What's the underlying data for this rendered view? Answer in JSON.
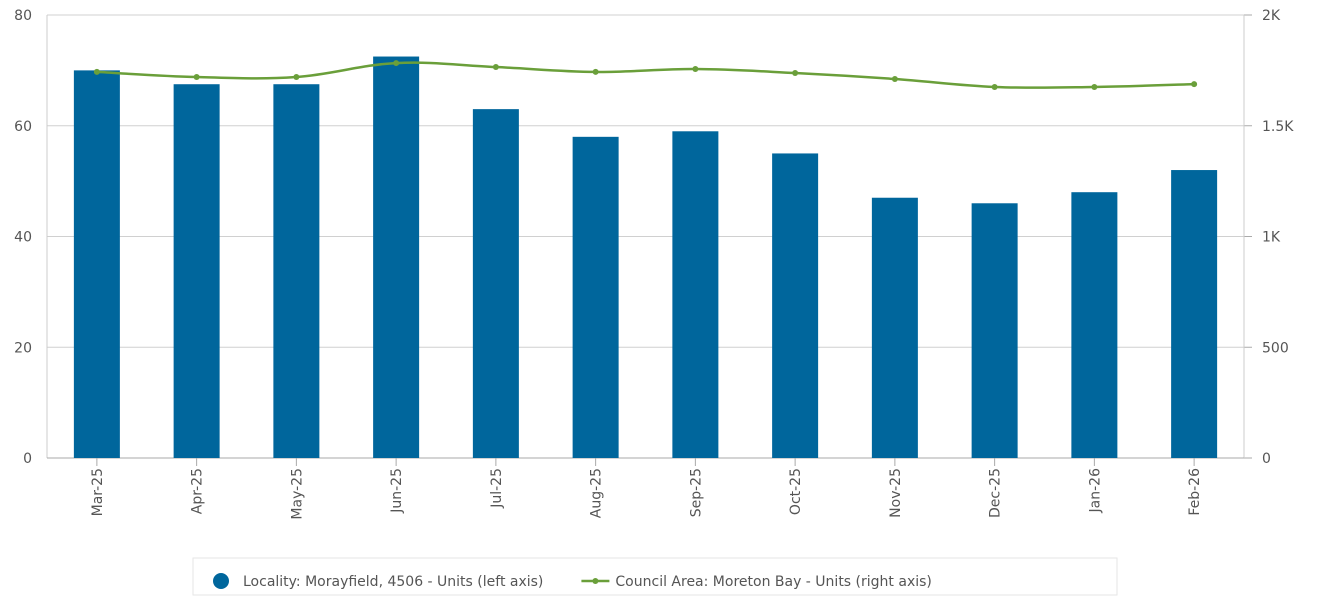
{
  "chart_data": {
    "type": "bar-line",
    "categories": [
      "Mar-25",
      "Apr-25",
      "May-25",
      "Jun-25",
      "Jul-25",
      "Aug-25",
      "Sep-25",
      "Oct-25",
      "Nov-25",
      "Dec-25",
      "Jan-26",
      "Feb-26"
    ],
    "series": [
      {
        "name": "Locality: Morayfield, 4506 - Units (left axis)",
        "color": "#00669c",
        "type": "bar",
        "axis": "y",
        "values": [
          70,
          67.5,
          67.5,
          72.5,
          63,
          58,
          59,
          55,
          47,
          46,
          48,
          52
        ]
      },
      {
        "name": "Council Area: Moreton Bay - Units (right axis)",
        "color": "#6a9f3a",
        "type": "line",
        "axis": "y2",
        "values": [
          1743,
          1720,
          1720,
          1783,
          1765,
          1743,
          1756,
          1738,
          1711,
          1675,
          1675,
          1688
        ]
      }
    ],
    "ylim": [
      0,
      80
    ],
    "yticks": [
      0,
      20,
      40,
      60,
      80
    ],
    "y2lim": [
      0,
      2000
    ],
    "y2ticks": [
      0,
      500,
      {
        "value": 1000,
        "label": "1K"
      },
      {
        "value": 1500,
        "label": "1.5K"
      },
      {
        "value": 2000,
        "label": "2K"
      }
    ],
    "grid": true,
    "legend": "bottom"
  }
}
